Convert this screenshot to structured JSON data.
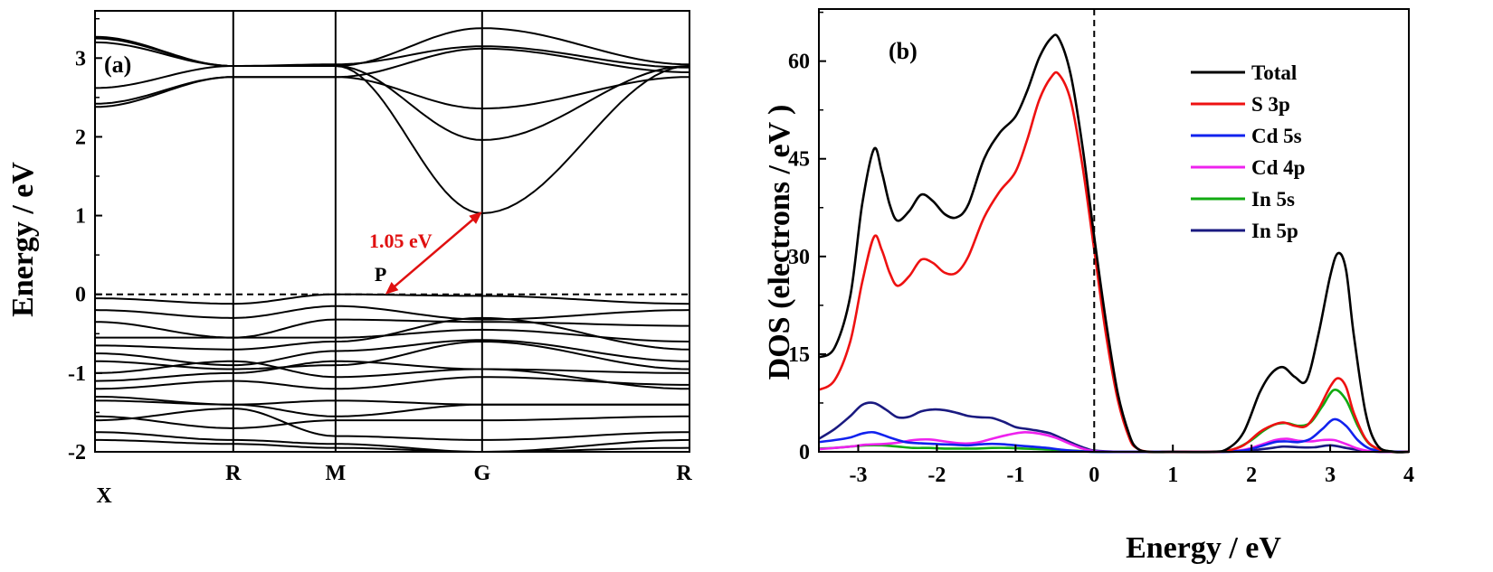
{
  "chart_data": [
    {
      "id": "a",
      "type": "line",
      "panel_label": "(a)",
      "title": "",
      "xlabel": "",
      "ylabel": "Energy / eV",
      "ylim": [
        -2,
        3.6
      ],
      "yticks": [
        -2,
        -1,
        0,
        1,
        2,
        3
      ],
      "kpoints": [
        {
          "label": "X",
          "pos": 0.0
        },
        {
          "label": "R",
          "pos": 1.0
        },
        {
          "label": "M",
          "pos": 1.74
        },
        {
          "label": "G",
          "pos": 2.8
        },
        {
          "label": "R",
          "pos": 4.3
        }
      ],
      "fermi_level": 0,
      "annotations": [
        {
          "text": "1.05 eV",
          "from": [
            2.1,
            0.0
          ],
          "to": [
            2.8,
            1.05
          ],
          "color": "#e01010"
        },
        {
          "text": "P",
          "at": [
            2.1,
            0.0
          ]
        }
      ],
      "conduction_bands": [
        {
          "x": [
            0,
            1.0,
            1.74,
            2.8,
            4.3
          ],
          "y": [
            3.27,
            2.9,
            2.9,
            1.03,
            2.9
          ]
        },
        {
          "x": [
            0,
            1.0,
            1.74,
            2.8,
            4.3
          ],
          "y": [
            2.62,
            2.9,
            2.9,
            1.96,
            2.9
          ]
        },
        {
          "x": [
            0,
            1.0,
            1.74,
            2.8,
            4.3
          ],
          "y": [
            2.42,
            2.76,
            2.76,
            2.36,
            2.76
          ]
        },
        {
          "x": [
            0,
            1.0,
            1.74,
            2.8,
            4.3
          ],
          "y": [
            2.38,
            2.76,
            2.76,
            3.12,
            2.82
          ]
        },
        {
          "x": [
            0,
            1.0,
            1.74,
            2.8,
            4.3
          ],
          "y": [
            3.25,
            2.9,
            2.9,
            3.38,
            2.92
          ]
        },
        {
          "x": [
            0,
            1.0,
            1.74,
            2.8,
            4.3
          ],
          "y": [
            3.2,
            2.9,
            2.92,
            3.15,
            2.88
          ]
        }
      ],
      "valence_bands": [
        {
          "x": [
            0,
            1.0,
            1.74,
            2.8,
            4.3
          ],
          "y": [
            -0.05,
            -0.12,
            0.0,
            -0.02,
            -0.12
          ]
        },
        {
          "x": [
            0,
            1.0,
            1.74,
            2.8,
            4.3
          ],
          "y": [
            -0.2,
            -0.3,
            -0.15,
            -0.32,
            -0.2
          ]
        },
        {
          "x": [
            0,
            1.0,
            1.74,
            2.8,
            4.3
          ],
          "y": [
            -0.35,
            -0.55,
            -0.32,
            -0.35,
            -0.4
          ]
        },
        {
          "x": [
            0,
            1.0,
            1.74,
            2.8,
            4.3
          ],
          "y": [
            -0.55,
            -0.55,
            -0.55,
            -0.45,
            -0.6
          ]
        },
        {
          "x": [
            0,
            1.0,
            1.74,
            2.8,
            4.3
          ],
          "y": [
            -0.75,
            -0.9,
            -0.72,
            -0.58,
            -0.85
          ]
        },
        {
          "x": [
            0,
            1.0,
            1.74,
            2.8,
            4.3
          ],
          "y": [
            -0.85,
            -0.95,
            -0.9,
            -0.6,
            -0.95
          ]
        },
        {
          "x": [
            0,
            1.0,
            1.74,
            2.8,
            4.3
          ],
          "y": [
            -1.0,
            -0.85,
            -1.05,
            -0.95,
            -1.0
          ]
        },
        {
          "x": [
            0,
            1.0,
            1.74,
            2.8,
            4.3
          ],
          "y": [
            -1.2,
            -1.1,
            -1.2,
            -1.05,
            -1.15
          ]
        },
        {
          "x": [
            0,
            1.0,
            1.74,
            2.8,
            4.3
          ],
          "y": [
            -1.3,
            -1.4,
            -1.35,
            -1.4,
            -1.4
          ]
        },
        {
          "x": [
            0,
            1.0,
            1.74,
            2.8,
            4.3
          ],
          "y": [
            -1.35,
            -1.4,
            -1.55,
            -1.4,
            -1.4
          ]
        },
        {
          "x": [
            0,
            1.0,
            1.74,
            2.8,
            4.3
          ],
          "y": [
            -1.55,
            -1.7,
            -1.6,
            -1.6,
            -1.55
          ]
        },
        {
          "x": [
            0,
            1.0,
            1.74,
            2.8,
            4.3
          ],
          "y": [
            -1.6,
            -1.45,
            -1.8,
            -1.85,
            -1.75
          ]
        },
        {
          "x": [
            0,
            1.0,
            1.74,
            2.8,
            4.3
          ],
          "y": [
            -1.75,
            -1.85,
            -1.9,
            -2.0,
            -1.85
          ]
        },
        {
          "x": [
            0,
            1.0,
            1.74,
            2.8,
            4.3
          ],
          "y": [
            -1.85,
            -1.9,
            -1.95,
            -2.0,
            -1.95
          ]
        },
        {
          "x": [
            0,
            1.0,
            1.74,
            2.8,
            4.3
          ],
          "y": [
            -0.65,
            -0.7,
            -0.6,
            -0.3,
            -0.7
          ]
        },
        {
          "x": [
            0,
            1.0,
            1.74,
            2.8,
            4.3
          ],
          "y": [
            -1.1,
            -1.0,
            -0.85,
            -0.95,
            -1.2
          ]
        }
      ]
    },
    {
      "id": "b",
      "type": "line",
      "panel_label": "(b)",
      "title": "",
      "xlabel": "Energy / eV",
      "ylabel": "DOS (electrons / eV )",
      "xlim": [
        -3.5,
        4
      ],
      "ylim": [
        0,
        68
      ],
      "xticks": [
        -3,
        -2,
        -1,
        0,
        1,
        2,
        3,
        4
      ],
      "yticks": [
        0,
        15,
        30,
        45,
        60
      ],
      "fermi_level": 0,
      "legend_position": "top-right",
      "series": [
        {
          "name": "Total",
          "color": "#000000",
          "x": [
            -3.5,
            -3.3,
            -3.1,
            -2.95,
            -2.8,
            -2.7,
            -2.6,
            -2.5,
            -2.35,
            -2.2,
            -2.05,
            -1.9,
            -1.75,
            -1.6,
            -1.4,
            -1.2,
            -1.0,
            -0.85,
            -0.7,
            -0.55,
            -0.45,
            -0.3,
            -0.15,
            0.0,
            0.15,
            0.3,
            0.45,
            0.55,
            0.7,
            1.0,
            1.5,
            1.7,
            1.9,
            2.1,
            2.25,
            2.4,
            2.55,
            2.7,
            2.85,
            3.0,
            3.1,
            3.2,
            3.3,
            3.45,
            3.6,
            3.8,
            4.0
          ],
          "y": [
            14.5,
            16,
            24,
            38,
            46.5,
            43,
            38,
            35.5,
            37,
            39.5,
            38.5,
            36.5,
            36,
            38,
            45,
            49,
            51.5,
            55.5,
            60.5,
            63.5,
            63.5,
            58,
            47,
            33,
            20,
            9,
            2.5,
            0.5,
            0,
            0,
            0,
            0.5,
            3,
            9,
            12,
            13,
            11.5,
            11,
            18,
            27,
            30.5,
            28,
            18,
            6,
            1,
            0,
            0
          ]
        },
        {
          "name": "S 3p",
          "color": "#ee1111",
          "x": [
            -3.5,
            -3.3,
            -3.1,
            -2.95,
            -2.8,
            -2.7,
            -2.6,
            -2.5,
            -2.35,
            -2.2,
            -2.05,
            -1.9,
            -1.75,
            -1.6,
            -1.4,
            -1.2,
            -1.0,
            -0.85,
            -0.7,
            -0.55,
            -0.45,
            -0.3,
            -0.15,
            0.0,
            0.15,
            0.3,
            0.45,
            0.55,
            0.7,
            1.0,
            1.5,
            1.7,
            1.9,
            2.1,
            2.25,
            2.4,
            2.55,
            2.7,
            2.85,
            3.0,
            3.1,
            3.2,
            3.3,
            3.45,
            3.6,
            3.8,
            4.0
          ],
          "y": [
            9.5,
            11,
            17,
            26,
            33,
            31,
            27.5,
            25.5,
            27,
            29.5,
            29,
            27.5,
            27.5,
            30,
            36,
            40,
            43,
            48,
            54,
            57.5,
            58,
            54,
            44,
            31,
            18,
            8,
            2,
            0.5,
            0,
            0,
            0,
            0.2,
            1,
            3,
            4,
            4.5,
            4,
            4,
            6.5,
            10,
            11.3,
            10,
            6,
            2,
            0.5,
            0,
            0
          ]
        },
        {
          "name": "Cd 5s",
          "color": "#1122ee",
          "x": [
            -3.5,
            -3.3,
            -3.1,
            -2.95,
            -2.8,
            -2.6,
            -2.4,
            -2.2,
            -2.0,
            -1.8,
            -1.6,
            -1.4,
            -1.2,
            -1.0,
            -0.8,
            -0.6,
            -0.4,
            -0.2,
            0.0,
            0.3,
            0.6,
            1.0,
            1.6,
            1.9,
            2.1,
            2.3,
            2.45,
            2.6,
            2.75,
            2.9,
            3.05,
            3.2,
            3.35,
            3.5,
            3.7,
            4.0
          ],
          "y": [
            1.5,
            1.8,
            2.2,
            2.8,
            3.0,
            2.2,
            1.5,
            1.3,
            1.2,
            1.1,
            1.0,
            1.2,
            1.2,
            1.0,
            0.8,
            0.6,
            0.3,
            0.1,
            0,
            0,
            0,
            0,
            0,
            0.2,
            0.8,
            1.5,
            1.6,
            1.5,
            2.0,
            3.5,
            5.0,
            4.0,
            1.8,
            0.5,
            0.1,
            0
          ]
        },
        {
          "name": "Cd 4p",
          "color": "#ee22ee",
          "x": [
            -3.5,
            -3.3,
            -3.1,
            -2.9,
            -2.7,
            -2.5,
            -2.3,
            -2.1,
            -1.9,
            -1.7,
            -1.5,
            -1.3,
            -1.1,
            -0.9,
            -0.7,
            -0.5,
            -0.3,
            -0.15,
            0.0,
            0.3,
            0.6,
            1.0,
            1.6,
            1.9,
            2.1,
            2.3,
            2.45,
            2.6,
            2.75,
            2.9,
            3.05,
            3.2,
            3.35,
            3.5,
            3.7,
            4.0
          ],
          "y": [
            0.4,
            0.6,
            0.8,
            1.1,
            1.2,
            1.4,
            1.8,
            1.9,
            1.6,
            1.3,
            1.4,
            2.0,
            2.6,
            3.0,
            2.8,
            2.2,
            1.2,
            0.5,
            0.1,
            0,
            0,
            0,
            0,
            0.3,
            1.0,
            1.8,
            2.0,
            1.7,
            1.6,
            1.8,
            1.8,
            1.2,
            0.5,
            0.1,
            0,
            0
          ]
        },
        {
          "name": "In 5s",
          "color": "#11aa11",
          "x": [
            -3.5,
            -3.3,
            -3.1,
            -2.9,
            -2.7,
            -2.5,
            -2.3,
            -2.1,
            -1.9,
            -1.7,
            -1.5,
            -1.3,
            -1.1,
            -0.9,
            -0.7,
            -0.5,
            -0.3,
            -0.15,
            0.0,
            0.3,
            0.6,
            1.0,
            1.6,
            1.8,
            2.0,
            2.15,
            2.3,
            2.45,
            2.6,
            2.75,
            2.9,
            3.05,
            3.2,
            3.35,
            3.5,
            3.7,
            4.0
          ],
          "y": [
            0.5,
            0.6,
            0.8,
            1.0,
            1.0,
            0.8,
            0.6,
            0.6,
            0.5,
            0.5,
            0.5,
            0.6,
            0.6,
            0.5,
            0.4,
            0.3,
            0.2,
            0.1,
            0,
            0,
            0,
            0,
            0,
            0.5,
            1.8,
            3.2,
            4.2,
            4.4,
            4.0,
            4.5,
            7.0,
            9.5,
            8.0,
            4.0,
            1.2,
            0.2,
            0
          ]
        },
        {
          "name": "In 5p",
          "color": "#1a1a80",
          "x": [
            -3.5,
            -3.3,
            -3.1,
            -2.95,
            -2.8,
            -2.65,
            -2.5,
            -2.35,
            -2.2,
            -2.05,
            -1.9,
            -1.75,
            -1.6,
            -1.45,
            -1.3,
            -1.15,
            -1.0,
            -0.85,
            -0.7,
            -0.55,
            -0.4,
            -0.25,
            -0.1,
            0.0,
            0.3,
            0.6,
            1.0,
            1.6,
            1.9,
            2.2,
            2.4,
            2.6,
            2.8,
            3.0,
            3.2,
            3.4,
            3.6,
            4.0
          ],
          "y": [
            2.0,
            3.5,
            5.5,
            7.2,
            7.5,
            6.5,
            5.3,
            5.4,
            6.2,
            6.5,
            6.4,
            6.0,
            5.5,
            5.3,
            5.2,
            4.6,
            3.8,
            3.5,
            3.2,
            2.8,
            2.0,
            1.2,
            0.5,
            0.2,
            0,
            0,
            0,
            0,
            0.1,
            0.5,
            0.8,
            0.7,
            0.7,
            1.0,
            0.6,
            0.2,
            0,
            0
          ]
        }
      ]
    }
  ]
}
